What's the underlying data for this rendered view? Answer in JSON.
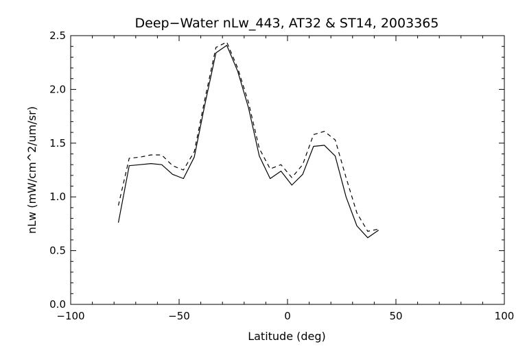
{
  "chart_data": {
    "type": "line",
    "title": "Deep−Water nLw_443, AT32 & ST14, 2003365",
    "xlabel": "Latitude (deg)",
    "ylabel": "nLw (mW/cm^2/um/sr)",
    "xlim": [
      -100,
      100
    ],
    "ylim": [
      0.0,
      2.5
    ],
    "x_ticks": [
      "−100",
      "−50",
      "0",
      "50",
      "100"
    ],
    "y_ticks": [
      "0.0",
      "0.5",
      "1.0",
      "1.5",
      "2.0",
      "2.5"
    ],
    "grid": false,
    "series": [
      {
        "style": "solid",
        "color": "#000000",
        "x": [
          -78,
          -73,
          -68,
          -63,
          -58,
          -53,
          -48,
          -43,
          -38,
          -33,
          -28,
          -23,
          -18,
          -13,
          -8,
          -3,
          2,
          7,
          12,
          17,
          22,
          27,
          32,
          37,
          42
        ],
        "y": [
          0.76,
          1.29,
          1.3,
          1.31,
          1.3,
          1.21,
          1.17,
          1.37,
          1.87,
          2.34,
          2.41,
          2.17,
          1.83,
          1.38,
          1.17,
          1.24,
          1.11,
          1.21,
          1.47,
          1.48,
          1.38,
          1.0,
          0.73,
          0.62,
          0.69
        ]
      },
      {
        "style": "dashed",
        "color": "#000000",
        "x": [
          -78,
          -73,
          -68,
          -63,
          -58,
          -53,
          -48,
          -43,
          -38,
          -33,
          -28,
          -23,
          -18,
          -13,
          -8,
          -3,
          2,
          7,
          12,
          17,
          22,
          27,
          32,
          37,
          42
        ],
        "y": [
          0.92,
          1.36,
          1.37,
          1.39,
          1.39,
          1.29,
          1.25,
          1.42,
          1.92,
          2.39,
          2.44,
          2.2,
          1.88,
          1.45,
          1.26,
          1.3,
          1.18,
          1.3,
          1.58,
          1.61,
          1.53,
          1.18,
          0.85,
          0.68,
          0.7
        ]
      }
    ]
  }
}
